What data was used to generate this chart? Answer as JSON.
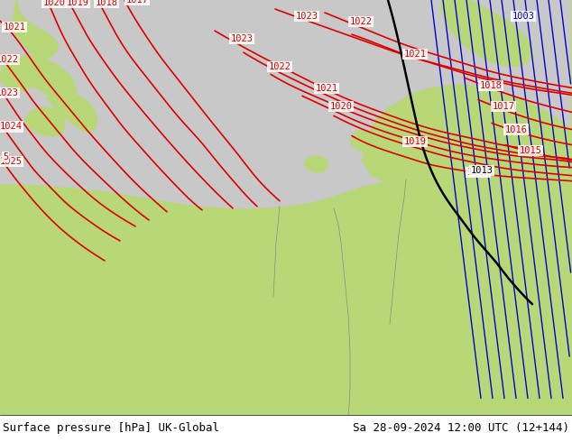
{
  "title_left": "Surface pressure [hPa] UK-Global",
  "title_right": "Sa 28-09-2024 12:00 UTC (12+144)",
  "land_green": "#b8d878",
  "land_gray": "#c8c8c8",
  "sea_gray": "#c8c8c8",
  "bg_white": "#e0e0d0",
  "red_color": "#dd0000",
  "blue_color": "#0000cc",
  "black_color": "#000000",
  "gray_color": "#888888",
  "text_color": "#000000",
  "font_family": "monospace",
  "footer_fontsize": 9,
  "fig_width": 6.34,
  "fig_height": 4.9,
  "dpi": 100
}
